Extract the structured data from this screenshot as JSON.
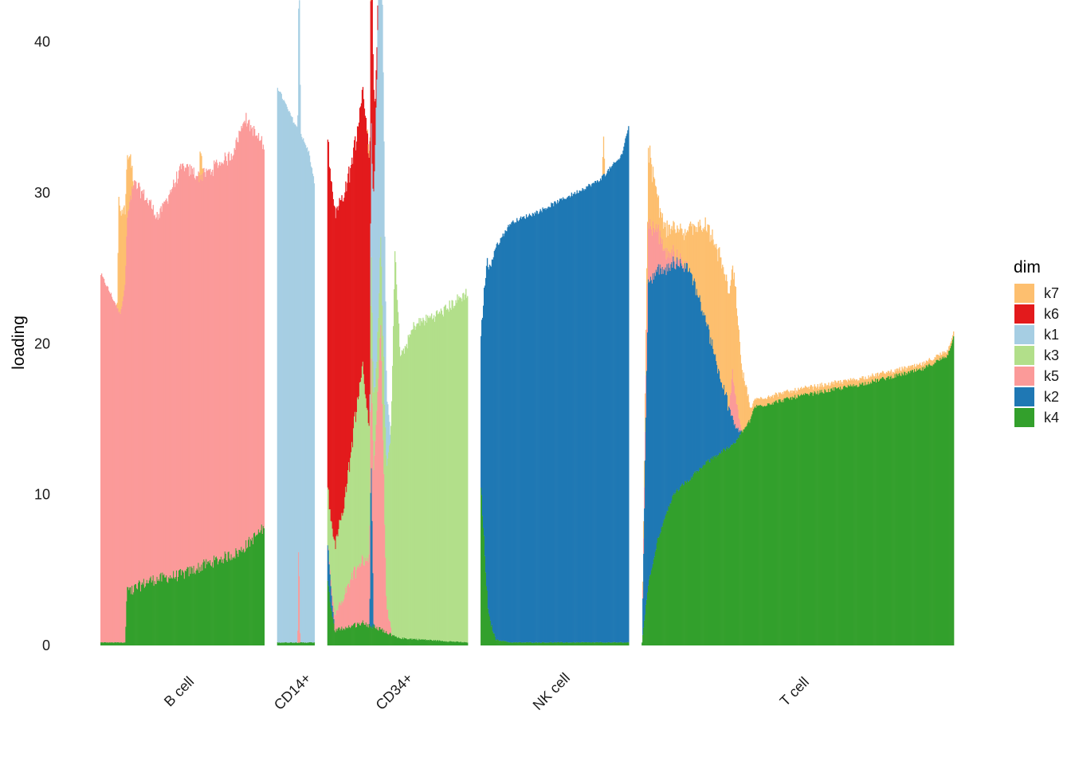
{
  "chart_data": {
    "type": "bar",
    "stacked": true,
    "ylabel": "loading",
    "xlabel": "",
    "ylim": [
      0,
      40
    ],
    "yticks": [
      0,
      10,
      20,
      30,
      40
    ],
    "grid": false,
    "legend": {
      "title": "dim",
      "placement": "right",
      "entries": [
        {
          "name": "k7",
          "color": "#FDBF6F"
        },
        {
          "name": "k6",
          "color": "#E31A1C"
        },
        {
          "name": "k1",
          "color": "#A6CEE3"
        },
        {
          "name": "k3",
          "color": "#B2DF8A"
        },
        {
          "name": "k5",
          "color": "#FB9A99"
        },
        {
          "name": "k2",
          "color": "#1F78B4"
        },
        {
          "name": "k4",
          "color": "#33A02C"
        }
      ]
    },
    "stack_order_bottom_to_top": [
      "k4",
      "k2",
      "k5",
      "k3",
      "k1",
      "k6",
      "k7"
    ],
    "groups": [
      {
        "name": "B cell",
        "n_cells": 210,
        "sorted_by": "k5",
        "profiles": {
          "k4": [
            [
              0,
              0.2
            ],
            [
              0.15,
              0.2
            ],
            [
              0.16,
              3.5
            ],
            [
              0.3,
              4.3
            ],
            [
              0.5,
              4.7
            ],
            [
              0.65,
              5.4
            ],
            [
              0.85,
              6.2
            ],
            [
              1,
              7.8
            ]
          ],
          "k5": [
            [
              0,
              24.4
            ],
            [
              0.1,
              22.2
            ],
            [
              0.12,
              21.8
            ],
            [
              0.2,
              27.0
            ],
            [
              0.35,
              24.0
            ],
            [
              0.5,
              27.0
            ],
            [
              0.62,
              25.8
            ],
            [
              0.8,
              26.5
            ],
            [
              0.88,
              28.5
            ],
            [
              1,
              25.2
            ]
          ],
          "k7": [
            [
              0,
              0
            ],
            [
              0.1,
              0
            ],
            [
              0.11,
              7.5
            ],
            [
              0.18,
              3.0
            ],
            [
              0.2,
              0.0
            ],
            [
              0.6,
              0.0
            ],
            [
              0.61,
              2.0
            ],
            [
              0.63,
              0
            ],
            [
              1,
              0
            ]
          ]
        }
      },
      {
        "name": "CD14+",
        "n_cells": 48,
        "sorted_by": "k1",
        "profiles": {
          "k4": [
            [
              0,
              0.2
            ],
            [
              1,
              0.2
            ]
          ],
          "k5": [
            [
              0,
              0.0
            ],
            [
              0.55,
              0.0
            ],
            [
              0.58,
              7.5
            ],
            [
              0.62,
              0.0
            ],
            [
              1,
              0.0
            ]
          ],
          "k1": [
            [
              0,
              36.8
            ],
            [
              0.3,
              35.2
            ],
            [
              0.55,
              34.0
            ],
            [
              0.6,
              38.4
            ],
            [
              0.64,
              33.6
            ],
            [
              0.85,
              32.5
            ],
            [
              1,
              30.5
            ]
          ]
        }
      },
      {
        "name": "CD34+",
        "n_cells": 180,
        "sorted_by": "k6",
        "profiles": {
          "k4": [
            [
              0,
              4.0
            ],
            [
              0.05,
              1.0
            ],
            [
              0.25,
              1.5
            ],
            [
              0.4,
              1.0
            ],
            [
              0.5,
              0.5
            ],
            [
              1,
              0.2
            ]
          ],
          "k2": [
            [
              0,
              2.5
            ],
            [
              0.05,
              0.0
            ],
            [
              0.3,
              0.0
            ],
            [
              0.31,
              12.0
            ],
            [
              0.33,
              0.0
            ],
            [
              1,
              0.0
            ]
          ],
          "k5": [
            [
              0,
              0.0
            ],
            [
              0.22,
              4.0
            ],
            [
              0.3,
              4.5
            ],
            [
              0.38,
              20.0
            ],
            [
              0.42,
              2.0
            ],
            [
              0.46,
              0.0
            ],
            [
              1,
              0.0
            ]
          ],
          "k3": [
            [
              0,
              3.5
            ],
            [
              0.12,
              6.0
            ],
            [
              0.25,
              13.0
            ],
            [
              0.35,
              3.0
            ],
            [
              0.45,
              12.0
            ],
            [
              0.48,
              25.5
            ],
            [
              0.52,
              18.5
            ],
            [
              0.62,
              20.8
            ],
            [
              0.82,
              21.8
            ],
            [
              1,
              23.2
            ]
          ],
          "k1": [
            [
              0,
              0.0
            ],
            [
              0.3,
              0.0
            ],
            [
              0.31,
              8.0
            ],
            [
              0.38,
              26.0
            ],
            [
              0.42,
              5.0
            ],
            [
              0.45,
              0.0
            ],
            [
              1,
              0.0
            ]
          ],
          "k6": [
            [
              0,
              23.0
            ],
            [
              0.1,
              21.0
            ],
            [
              0.2,
              18.0
            ],
            [
              0.28,
              18.5
            ],
            [
              0.3,
              17.5
            ],
            [
              0.34,
              3.0
            ],
            [
              0.38,
              0.0
            ],
            [
              1,
              0.0
            ]
          ],
          "k7": [
            [
              0,
              0.0
            ],
            [
              0.28,
              0.0
            ],
            [
              0.29,
              0.6
            ],
            [
              0.31,
              0.0
            ],
            [
              1,
              0.0
            ]
          ]
        }
      },
      {
        "name": "NK cell",
        "n_cells": 190,
        "sorted_by": "k2",
        "profiles": {
          "k4": [
            [
              0,
              10.5
            ],
            [
              0.05,
              2.0
            ],
            [
              0.1,
              0.4
            ],
            [
              0.2,
              0.2
            ],
            [
              1,
              0.2
            ]
          ],
          "k2": [
            [
              0,
              10.0
            ],
            [
              0.04,
              22.0
            ],
            [
              0.1,
              26.0
            ],
            [
              0.2,
              27.8
            ],
            [
              0.4,
              28.6
            ],
            [
              0.6,
              29.6
            ],
            [
              0.8,
              30.6
            ],
            [
              0.95,
              32.2
            ],
            [
              1,
              34.2
            ]
          ],
          "k7": [
            [
              0,
              0
            ],
            [
              0.82,
              0
            ],
            [
              0.83,
              2.5
            ],
            [
              0.84,
              0
            ],
            [
              1,
              0
            ]
          ]
        }
      },
      {
        "name": "T cell",
        "n_cells": 400,
        "sorted_by": "k4",
        "profiles": {
          "k4": [
            [
              0,
              0.2
            ],
            [
              0.02,
              4.0
            ],
            [
              0.05,
              7.0
            ],
            [
              0.1,
              10.0
            ],
            [
              0.2,
              12.0
            ],
            [
              0.3,
              13.5
            ],
            [
              0.35,
              15.0
            ],
            [
              0.36,
              15.8
            ],
            [
              0.5,
              16.5
            ],
            [
              0.7,
              17.3
            ],
            [
              0.9,
              18.3
            ],
            [
              0.98,
              19.2
            ],
            [
              1,
              20.4
            ]
          ],
          "k2": [
            [
              0,
              0
            ],
            [
              0.02,
              20.0
            ],
            [
              0.08,
              16.0
            ],
            [
              0.15,
              14.0
            ],
            [
              0.2,
              10.0
            ],
            [
              0.25,
              5.0
            ],
            [
              0.3,
              1.0
            ],
            [
              0.32,
              0
            ],
            [
              1,
              0
            ]
          ],
          "k5": [
            [
              0,
              0
            ],
            [
              0.02,
              4.0
            ],
            [
              0.08,
              1.0
            ],
            [
              0.15,
              0
            ],
            [
              0.28,
              0
            ],
            [
              0.29,
              3.0
            ],
            [
              0.32,
              0
            ],
            [
              1,
              0
            ]
          ],
          "k7": [
            [
              0,
              0
            ],
            [
              0.02,
              5.0
            ],
            [
              0.06,
              1.5
            ],
            [
              0.14,
              2.0
            ],
            [
              0.2,
              6.0
            ],
            [
              0.25,
              8.0
            ],
            [
              0.3,
              7.0
            ],
            [
              0.35,
              0.5
            ],
            [
              1,
              0.3
            ]
          ]
        }
      }
    ],
    "notes": "Stacked bar per cell; each group's bars are sorted by loading; values are approximate."
  }
}
